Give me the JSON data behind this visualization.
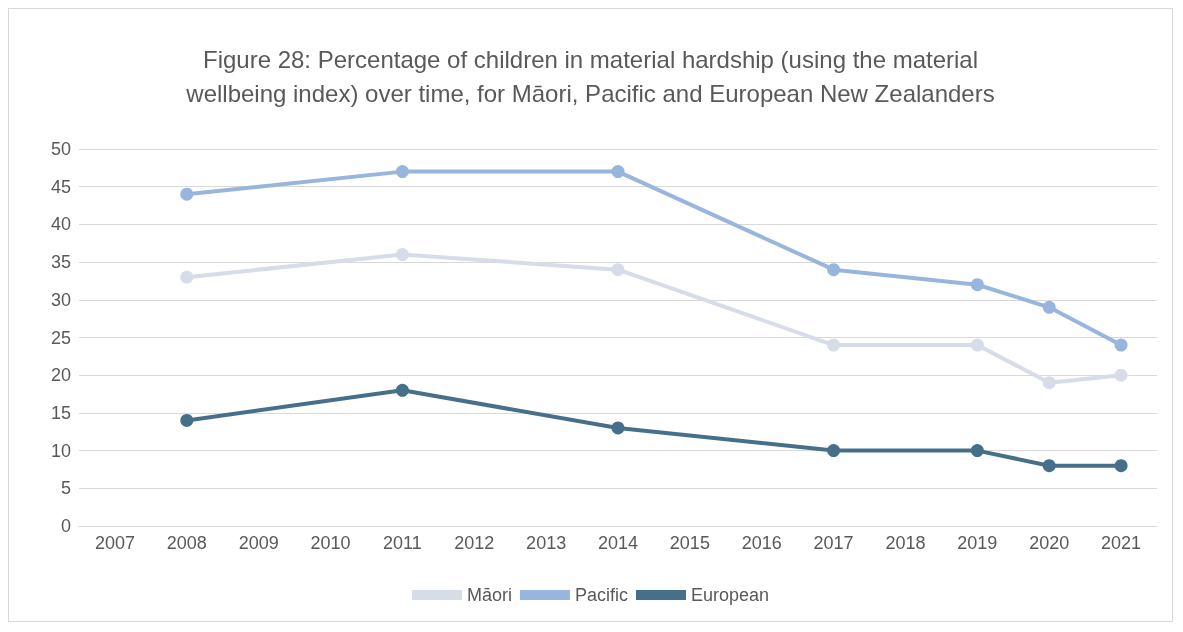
{
  "chart_data": {
    "type": "line",
    "title": "Figure 28: Percentage of children in material hardship (using the material\nwellbeing index) over time, for Māori, Pacific and European New Zealanders",
    "categories": [
      "2007",
      "2008",
      "2009",
      "2010",
      "2011",
      "2012",
      "2013",
      "2014",
      "2015",
      "2016",
      "2017",
      "2018",
      "2019",
      "2020",
      "2021"
    ],
    "series": [
      {
        "name": "Māori",
        "color": "#d6dce8",
        "values": [
          null,
          33,
          null,
          null,
          36,
          null,
          null,
          34,
          null,
          null,
          24,
          null,
          24,
          19,
          20
        ]
      },
      {
        "name": "Pacific",
        "color": "#98b6dd",
        "values": [
          null,
          44,
          null,
          null,
          47,
          null,
          null,
          47,
          null,
          null,
          34,
          null,
          32,
          29,
          24
        ]
      },
      {
        "name": "European",
        "color": "#46708a",
        "values": [
          null,
          14,
          null,
          null,
          18,
          null,
          null,
          13,
          null,
          null,
          10,
          null,
          10,
          8,
          8
        ]
      }
    ],
    "ylim": [
      0,
      50
    ],
    "yticks": [
      0,
      5,
      10,
      15,
      20,
      25,
      30,
      35,
      40,
      45,
      50
    ],
    "grid": "y",
    "legend": "bottom",
    "marker": "circle",
    "line_style": "solid"
  }
}
